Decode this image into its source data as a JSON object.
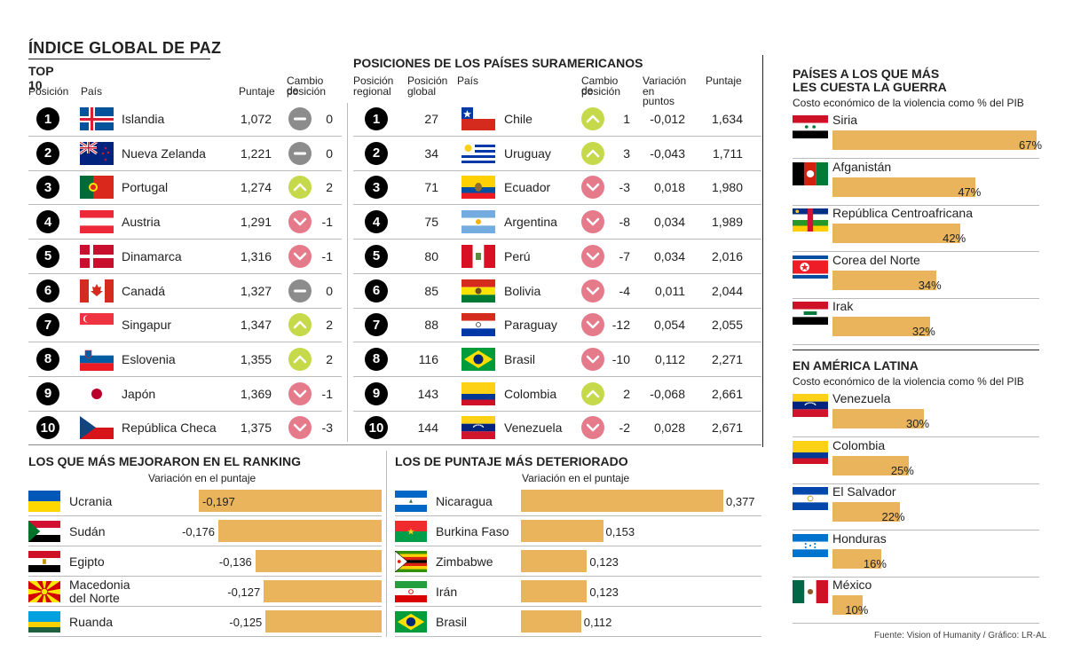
{
  "top10": {
    "title": "ÍNDICE GLOBAL DE PAZ",
    "subtitle": "TOP 10",
    "headers": {
      "pos": "Posición",
      "country": "País",
      "score": "Puntaje",
      "change1": "Cambio de",
      "change2": "posición"
    },
    "rows": [
      {
        "pos": "1",
        "country": "Islandia",
        "score": "1,072",
        "change": "0",
        "dir": "eq"
      },
      {
        "pos": "2",
        "country": "Nueva Zelanda",
        "score": "1,221",
        "change": "0",
        "dir": "eq"
      },
      {
        "pos": "3",
        "country": "Portugal",
        "score": "1,274",
        "change": "2",
        "dir": "up"
      },
      {
        "pos": "4",
        "country": "Austria",
        "score": "1,291",
        "change": "-1",
        "dir": "down"
      },
      {
        "pos": "5",
        "country": "Dinamarca",
        "score": "1,316",
        "change": "-1",
        "dir": "down"
      },
      {
        "pos": "6",
        "country": "Canadá",
        "score": "1,327",
        "change": "0",
        "dir": "eq"
      },
      {
        "pos": "7",
        "country": "Singapur",
        "score": "1,347",
        "change": "2",
        "dir": "up"
      },
      {
        "pos": "8",
        "country": "Eslovenia",
        "score": "1,355",
        "change": "2",
        "dir": "up"
      },
      {
        "pos": "9",
        "country": "Japón",
        "score": "1,369",
        "change": "-1",
        "dir": "down"
      },
      {
        "pos": "10",
        "country": "República Checa",
        "score": "1,375",
        "change": "-3",
        "dir": "down"
      }
    ]
  },
  "south": {
    "title": "POSICIONES DE LOS PAÍSES SURAMERICANOS",
    "headers": {
      "reg1": "Posición",
      "reg2": "regional",
      "glob1": "Posición",
      "glob2": "global",
      "country": "País",
      "chg1": "Cambio de",
      "chg2": "posición",
      "var1": "Variación",
      "var2": "en puntos",
      "score": "Puntaje"
    },
    "rows": [
      {
        "pos": "1",
        "global": "27",
        "country": "Chile",
        "change": "1",
        "dir": "up",
        "variation": "-0,012",
        "score": "1,634"
      },
      {
        "pos": "2",
        "global": "34",
        "country": "Uruguay",
        "change": "3",
        "dir": "up",
        "variation": "-0,043",
        "score": "1,711"
      },
      {
        "pos": "3",
        "global": "71",
        "country": "Ecuador",
        "change": "-3",
        "dir": "down",
        "variation": "0,018",
        "score": "1,980"
      },
      {
        "pos": "4",
        "global": "75",
        "country": "Argentina",
        "change": "-8",
        "dir": "down",
        "variation": "0,034",
        "score": "1,989"
      },
      {
        "pos": "5",
        "global": "80",
        "country": "Perú",
        "change": "-7",
        "dir": "down",
        "variation": "0,034",
        "score": "2,016"
      },
      {
        "pos": "6",
        "global": "85",
        "country": "Bolivia",
        "change": "-4",
        "dir": "down",
        "variation": "0,011",
        "score": "2,044"
      },
      {
        "pos": "7",
        "global": "88",
        "country": "Paraguay",
        "change": "-12",
        "dir": "down",
        "variation": "0,054",
        "score": "2,055"
      },
      {
        "pos": "8",
        "global": "116",
        "country": "Brasil",
        "change": "-10",
        "dir": "down",
        "variation": "0,112",
        "score": "2,271"
      },
      {
        "pos": "9",
        "global": "143",
        "country": "Colombia",
        "change": "2",
        "dir": "up",
        "variation": "-0,068",
        "score": "2,661"
      },
      {
        "pos": "10",
        "global": "144",
        "country": "Venezuela",
        "change": "-2",
        "dir": "down",
        "variation": "0,028",
        "score": "2,671"
      }
    ]
  },
  "improved": {
    "title": "LOS QUE MÁS MEJORARON EN EL RANKING",
    "axis": "Variación en el puntaje"
  },
  "worsened": {
    "title": "LOS DE PUNTAJE MÁS DETERIORADO",
    "axis": "Variación en el puntaje"
  },
  "war": {
    "title1": "PAÍSES A LOS QUE MÁS",
    "title2": "LES CUESTA LA GUERRA",
    "subtitle": "Costo económico de la violencia como % del PIB"
  },
  "latam": {
    "title": "EN AMÉRICA LATINA",
    "subtitle": "Costo económico de la violencia como % del PIB"
  },
  "source": "Fuente: Vision of Humanity / Gráfico: LR-AL",
  "colors": {
    "bar": "#e9b45c",
    "up": "#c5d94a",
    "down": "#e57b8a",
    "equal": "#8c8c8c"
  },
  "chart_data": [
    {
      "type": "bar",
      "title": "LOS QUE MÁS MEJORARON EN EL RANKING",
      "ylabel": "Variación en el puntaje",
      "categories": [
        "Ucrania",
        "Sudán",
        "Egipto",
        "Macedonia del Norte",
        "Ruanda"
      ],
      "values": [
        -0.197,
        -0.176,
        -0.136,
        -0.127,
        -0.125
      ],
      "labels": [
        "-0,197",
        "-0,176",
        "-0,136",
        "-0,127",
        "-0,125"
      ]
    },
    {
      "type": "bar",
      "title": "LOS DE PUNTAJE MÁS DETERIORADO",
      "ylabel": "Variación en el puntaje",
      "categories": [
        "Nicaragua",
        "Burkina Faso",
        "Zimbabwe",
        "Irán",
        "Brasil"
      ],
      "values": [
        0.377,
        0.153,
        0.123,
        0.123,
        0.112
      ],
      "labels": [
        "0,377",
        "0,153",
        "0,123",
        "0,123",
        "0,112"
      ]
    },
    {
      "type": "bar",
      "title": "PAÍSES A LOS QUE MÁS LES CUESTA LA GUERRA",
      "ylabel": "Costo económico de la violencia como % del PIB",
      "categories": [
        "Siria",
        "Afganistán",
        "República Centroafricana",
        "Corea del Norte",
        "Irak"
      ],
      "values": [
        67,
        47,
        42,
        34,
        32
      ],
      "labels": [
        "67%",
        "47%",
        "42%",
        "34%",
        "32%"
      ]
    },
    {
      "type": "bar",
      "title": "EN AMÉRICA LATINA",
      "ylabel": "Costo económico de la violencia como % del PIB",
      "categories": [
        "Venezuela",
        "Colombia",
        "El Salvador",
        "Honduras",
        "México"
      ],
      "values": [
        30,
        25,
        22,
        16,
        10
      ],
      "labels": [
        "30%",
        "25%",
        "22%",
        "16%",
        "10%"
      ]
    }
  ]
}
